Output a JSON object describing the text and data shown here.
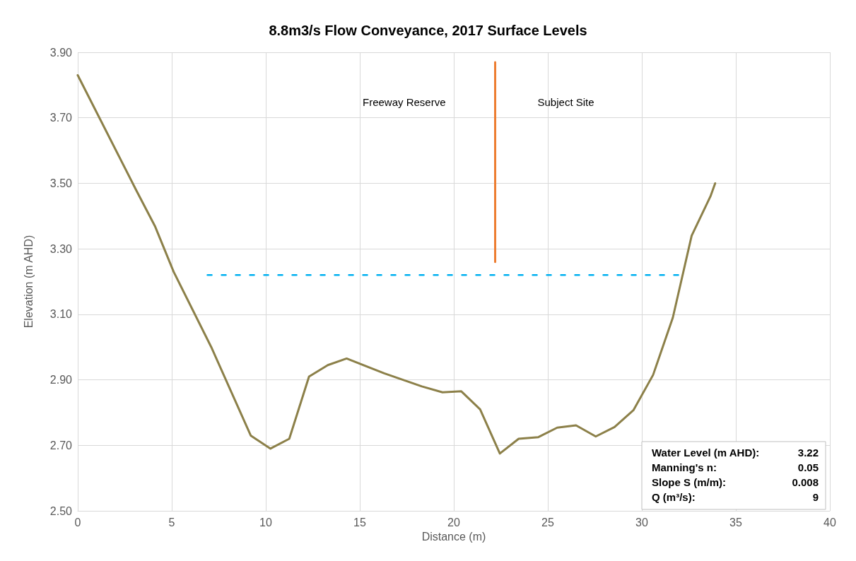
{
  "chart_data": {
    "type": "line",
    "title": "8.8m3/s Flow Conveyance, 2017 Surface Levels",
    "xlabel": "Distance (m)",
    "ylabel": "Elevation (m AHD)",
    "xlim": [
      0,
      40
    ],
    "xticks": [
      0,
      5,
      10,
      15,
      20,
      25,
      30,
      35,
      40
    ],
    "ylim": [
      2.5,
      3.9
    ],
    "yticks": [
      {
        "value": 2.5,
        "label": "2.50"
      },
      {
        "value": 2.7,
        "label": "2.70"
      },
      {
        "value": 2.9,
        "label": "2.90"
      },
      {
        "value": 3.1,
        "label": "3.10"
      },
      {
        "value": 3.3,
        "label": "3.30"
      },
      {
        "value": 3.5,
        "label": "3.50"
      },
      {
        "value": 3.7,
        "label": "3.70"
      },
      {
        "value": 3.9,
        "label": "3.90"
      }
    ],
    "grid": true,
    "marker": "none",
    "line_style": "solid",
    "series": [
      {
        "color": "#8c8049",
        "x": [
          0,
          3.1,
          4.1,
          5.1,
          7.1,
          9.2,
          10.25,
          11.25,
          12.3,
          13.3,
          14.3,
          16.3,
          18.3,
          19.4,
          20.4,
          21.4,
          22.45,
          23.45,
          24.5,
          25.5,
          26.5,
          27.55,
          28.55,
          29.55,
          30.6,
          31.65,
          32.65,
          33.65,
          33.9
        ],
        "values": [
          3.83,
          3.48,
          3.37,
          3.23,
          3.0,
          2.73,
          2.69,
          2.72,
          2.91,
          2.945,
          2.965,
          2.92,
          2.88,
          2.862,
          2.865,
          2.81,
          2.675,
          2.72,
          2.725,
          2.754,
          2.761,
          2.727,
          2.756,
          2.807,
          2.915,
          3.09,
          3.34,
          3.46,
          3.5
        ]
      },
      {
        "color": "#00b0f0",
        "line_style": "dashed",
        "x": [
          6.9,
          32
        ],
        "values": [
          3.22,
          3.22
        ]
      },
      {
        "color": "#ed7d31",
        "x": [
          22.2,
          22.2
        ],
        "values": [
          3.26,
          3.87
        ]
      }
    ],
    "annotations": [
      "Freeway Reserve",
      "Subject Site",
      "Water Level (m AHD): 3.22",
      "Manning's n: 0.05",
      "Slope S (m/m): 0.008",
      "Q (m³/s): 9"
    ]
  }
}
